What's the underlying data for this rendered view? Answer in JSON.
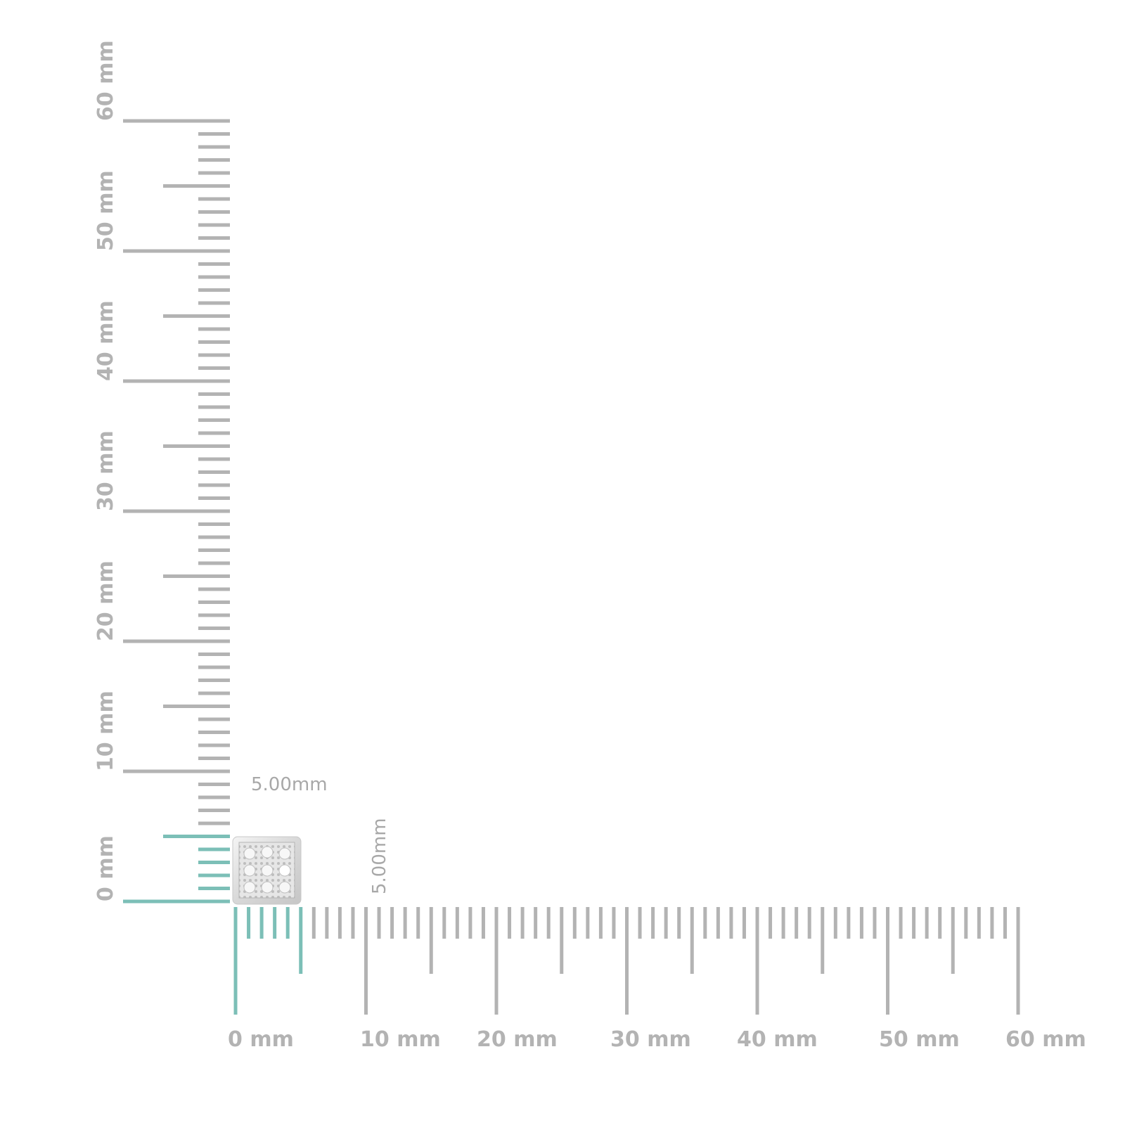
{
  "colors": {
    "ruler": "#b3b3b3",
    "highlight": "#7cbfb7",
    "label": "#b3b3b3"
  },
  "vertical_ruler": {
    "labels": [
      "0 mm",
      "10 mm",
      "20 mm",
      "30 mm",
      "40 mm",
      "50 mm",
      "60 mm"
    ],
    "max_mm": 60
  },
  "horizontal_ruler": {
    "labels": [
      "0 mm",
      "10 mm",
      "20 mm",
      "30 mm",
      "40 mm",
      "50 mm",
      "60 mm"
    ],
    "max_mm": 60
  },
  "product": {
    "name": "square-pave-stud-earring",
    "width_label": "5.00mm",
    "height_label": "5.00mm",
    "width_mm": 5,
    "height_mm": 5
  }
}
